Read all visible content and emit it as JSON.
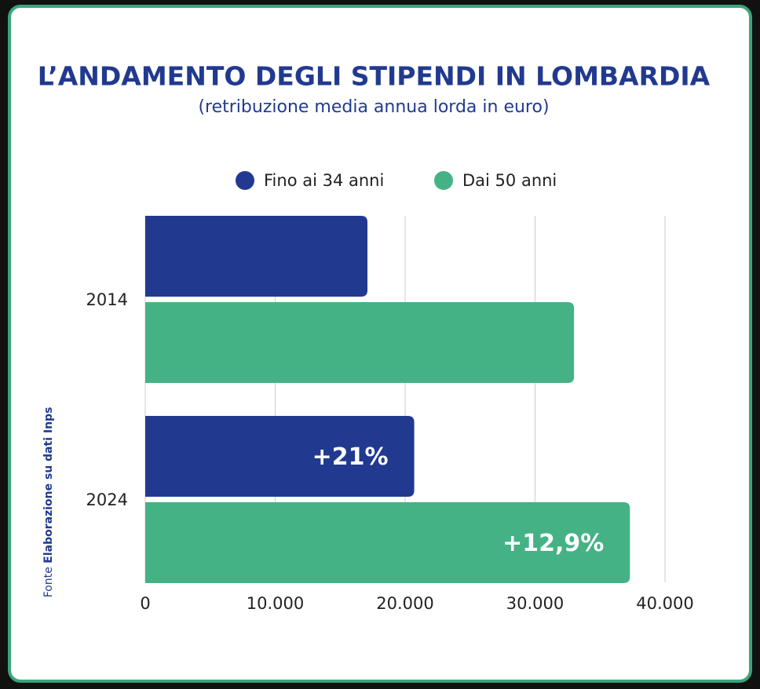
{
  "chart_data": {
    "type": "bar",
    "orientation": "horizontal",
    "title": "L’ANDAMENTO DEGLI STIPENDI IN LOMBARDIA",
    "subtitle": "(retribuzione media annua lorda in euro)",
    "categories": [
      "2014",
      "2024"
    ],
    "series": [
      {
        "name": "Fino ai 34 anni",
        "color": "#213a8f",
        "values": [
          17100,
          20700
        ]
      },
      {
        "name": "Dai 50 anni",
        "color": "#45b285",
        "values": [
          33000,
          37300
        ]
      }
    ],
    "annotations": [
      "+21%",
      "+12,9%"
    ],
    "xlim": [
      0,
      40000
    ],
    "xticks": [
      0,
      {
        "value": 10000,
        "label": "10.000"
      },
      {
        "value": 20000,
        "label": "20.000"
      },
      {
        "value": 30000,
        "label": "30.000"
      },
      {
        "value": 40000,
        "label": "40.000"
      }
    ],
    "grid": true,
    "legend": "top",
    "source": {
      "prefix": "Fonte",
      "text": "Elaborazione su dati Inps"
    }
  }
}
